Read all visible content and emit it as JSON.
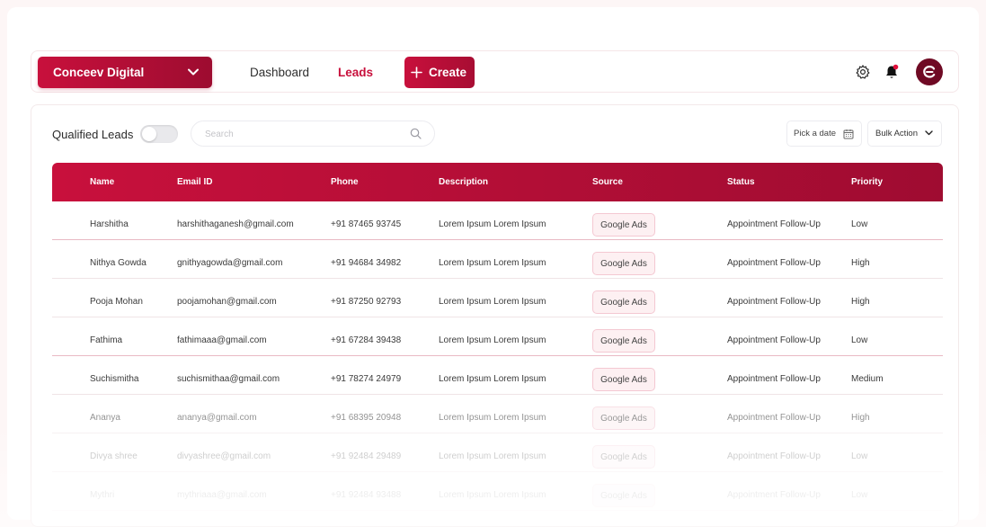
{
  "header": {
    "org_name": "Conceev Digital",
    "nav": {
      "dashboard": "Dashboard",
      "leads": "Leads"
    },
    "create_label": "Create"
  },
  "filters": {
    "qualified_label": "Qualified Leads",
    "qualified_enabled": false,
    "search_placeholder": "Search",
    "search_value": "",
    "date_label": "Pick a date",
    "bulk_label": "Bulk Action"
  },
  "table": {
    "columns": [
      "Name",
      "Email ID",
      "Phone",
      "Description",
      "Source",
      "Status",
      "Priority"
    ],
    "rows": [
      {
        "name": "Harshitha",
        "email": "harshithaganesh@gmail.com",
        "phone": "+91 87465 93745",
        "description": "Lorem Ipsum Lorem Ipsum",
        "source": "Google Ads",
        "status": "Appointment Follow-Up",
        "priority": "Low"
      },
      {
        "name": "Nithya Gowda",
        "email": "gnithyagowda@gmail.com",
        "phone": "+91 94684 34982",
        "description": "Lorem Ipsum Lorem Ipsum",
        "source": "Google Ads",
        "status": "Appointment Follow-Up",
        "priority": "High"
      },
      {
        "name": "Pooja Mohan",
        "email": "poojamohan@gmail.com",
        "phone": "+91 87250 92793",
        "description": "Lorem Ipsum Lorem Ipsum",
        "source": "Google Ads",
        "status": "Appointment Follow-Up",
        "priority": "High"
      },
      {
        "name": "Fathima",
        "email": "fathimaaa@gmail.com",
        "phone": "+91 67284 39438",
        "description": "Lorem Ipsum Lorem Ipsum",
        "source": "Google Ads",
        "status": "Appointment Follow-Up",
        "priority": "Low"
      },
      {
        "name": "Suchismitha",
        "email": "suchismithaa@gmail.com",
        "phone": "+91 78274 24979",
        "description": "Lorem Ipsum Lorem Ipsum",
        "source": "Google Ads",
        "status": "Appointment Follow-Up",
        "priority": "Medium"
      },
      {
        "name": "Ananya",
        "email": "ananya@gmail.com",
        "phone": "+91 68395 20948",
        "description": "Lorem Ipsum Lorem Ipsum",
        "source": "Google Ads",
        "status": "Appointment Follow-Up",
        "priority": "High"
      },
      {
        "name": "Divya shree",
        "email": "divyashree@gmail.com",
        "phone": "+91 92484 29489",
        "description": "Lorem Ipsum Lorem Ipsum",
        "source": "Google Ads",
        "status": "Appointment Follow-Up",
        "priority": "Low"
      },
      {
        "name": "Mythri",
        "email": "mythriaaa@gmail.com",
        "phone": "+91 92484 93488",
        "description": "Lorem Ipsum Lorem Ipsum",
        "source": "Google Ads",
        "status": "Appointment Follow-Up",
        "priority": "Low"
      }
    ]
  },
  "colors": {
    "brand": "#c8103c",
    "brand_dark": "#9d0c30",
    "badge_bg": "#fdf0f2",
    "notification_dot": "#e0103c"
  },
  "icons": {
    "org_chevron": "chevron-down-icon",
    "create": "plus-icon",
    "settings": "gear-icon",
    "notifications": "bell-icon",
    "avatar": "brand-logo-icon",
    "search": "search-icon",
    "date": "calendar-icon",
    "bulk": "chevron-down-icon"
  }
}
